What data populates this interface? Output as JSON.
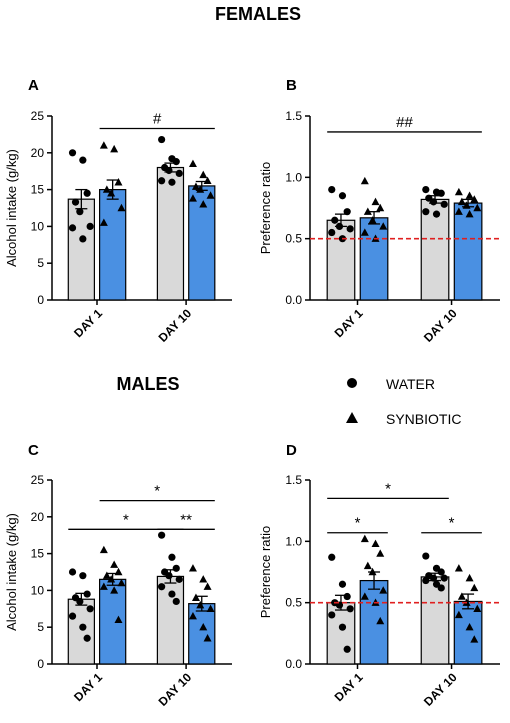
{
  "figure": {
    "section_females": "FEMALES",
    "section_males": "MALES",
    "legend": [
      {
        "label": "WATER",
        "marker": "circle",
        "color": "#d9d9d9"
      },
      {
        "label": "SYNBIOTIC",
        "marker": "triangle",
        "color": "#4a90e2"
      }
    ]
  },
  "chart_data": [
    {
      "panel": "A",
      "type": "bar",
      "ylabel": "Alcohol intake (g/kg)",
      "ylim": [
        0,
        25
      ],
      "yticks": [
        0,
        5,
        10,
        15,
        20,
        25
      ],
      "categories": [
        "DAY 1",
        "DAY 10"
      ],
      "series": [
        {
          "name": "WATER",
          "values": [
            13.7,
            18.0
          ],
          "sem": [
            1.3,
            0.6
          ],
          "points": [
            [
              20.0,
              19.0,
              14.5,
              13.3,
              12.0,
              10.0,
              9.8,
              8.3
            ],
            [
              21.8,
              19.2,
              18.8,
              18.0,
              17.6,
              17.2,
              16.2,
              16.0
            ]
          ]
        },
        {
          "name": "SYNBIOTIC",
          "values": [
            15.0,
            15.5
          ],
          "sem": [
            1.3,
            0.6
          ],
          "points": [
            [
              21.0,
              20.5,
              16.0,
              15.0,
              14.5,
              12.5,
              10.5
            ],
            [
              18.5,
              17.0,
              16.2,
              15.4,
              15.0,
              14.2,
              13.8,
              13.0
            ]
          ]
        }
      ],
      "annotations": [
        {
          "text": "#",
          "from": [
            0,
            1
          ],
          "to": [
            1,
            1
          ],
          "y": 23.3
        }
      ]
    },
    {
      "panel": "B",
      "type": "bar",
      "ylabel": "Preference ratio",
      "ylim": [
        0,
        1.5
      ],
      "yticks": [
        "0.0",
        "0.5",
        "1.0",
        "1.5"
      ],
      "reference_line": 0.5,
      "categories": [
        "DAY 1",
        "DAY 10"
      ],
      "series": [
        {
          "name": "WATER",
          "values": [
            0.65,
            0.82
          ],
          "sem": [
            0.05,
            0.03
          ],
          "points": [
            [
              0.9,
              0.85,
              0.72,
              0.65,
              0.6,
              0.58,
              0.55,
              0.5
            ],
            [
              0.9,
              0.88,
              0.87,
              0.83,
              0.8,
              0.78,
              0.72,
              0.7
            ]
          ]
        },
        {
          "name": "SYNBIOTIC",
          "values": [
            0.67,
            0.79
          ],
          "sem": [
            0.05,
            0.03
          ],
          "points": [
            [
              0.97,
              0.8,
              0.75,
              0.72,
              0.65,
              0.6,
              0.55,
              0.5
            ],
            [
              0.88,
              0.85,
              0.82,
              0.8,
              0.77,
              0.75,
              0.72,
              0.7
            ]
          ]
        }
      ],
      "annotations": [
        {
          "text": "##",
          "from": [
            0,
            0
          ],
          "to": [
            1,
            1
          ],
          "y": 1.37
        }
      ]
    },
    {
      "panel": "C",
      "type": "bar",
      "ylabel": "Alcohol intake (g/kg)",
      "ylim": [
        0,
        25
      ],
      "yticks": [
        0,
        5,
        10,
        15,
        20,
        25
      ],
      "categories": [
        "DAY 1",
        "DAY 10"
      ],
      "series": [
        {
          "name": "WATER",
          "values": [
            8.8,
            11.9
          ],
          "sem": [
            0.8,
            0.9
          ],
          "points": [
            [
              12.5,
              12.0,
              9.5,
              9.0,
              8.5,
              7.5,
              6.5,
              5.0,
              3.5
            ],
            [
              17.5,
              14.5,
              13.0,
              12.5,
              12.0,
              11.5,
              10.5,
              9.5,
              8.5
            ]
          ]
        },
        {
          "name": "SYNBIOTIC",
          "values": [
            11.5,
            8.2
          ],
          "sem": [
            0.8,
            1.0
          ],
          "points": [
            [
              15.5,
              13.5,
              12.5,
              12.0,
              11.5,
              11.0,
              10.5,
              10.0,
              6.0
            ],
            [
              13.0,
              11.5,
              10.5,
              9.0,
              8.0,
              7.5,
              6.5,
              5.0,
              3.5
            ]
          ]
        }
      ],
      "annotations": [
        {
          "text": "*",
          "from": [
            0,
            1
          ],
          "to": [
            1,
            1
          ],
          "y": 22.2
        },
        {
          "text": "*",
          "from": [
            0,
            0
          ],
          "to": [
            1,
            0
          ],
          "y": 18.3
        },
        {
          "text": "**",
          "from": [
            1,
            0
          ],
          "to": [
            1,
            1
          ],
          "y": 18.3
        }
      ]
    },
    {
      "panel": "D",
      "type": "bar",
      "ylabel": "Preference ratio",
      "ylim": [
        0,
        1.5
      ],
      "yticks": [
        "0.0",
        "0.5",
        "1.0",
        "1.5"
      ],
      "reference_line": 0.5,
      "categories": [
        "DAY 1",
        "DAY 10"
      ],
      "series": [
        {
          "name": "WATER",
          "values": [
            0.5,
            0.71
          ],
          "sem": [
            0.06,
            0.03
          ],
          "points": [
            [
              0.87,
              0.65,
              0.55,
              0.5,
              0.48,
              0.45,
              0.4,
              0.3,
              0.12
            ],
            [
              0.88,
              0.78,
              0.75,
              0.72,
              0.7,
              0.7,
              0.68,
              0.65,
              0.62
            ]
          ]
        },
        {
          "name": "SYNBIOTIC",
          "values": [
            0.68,
            0.51
          ],
          "sem": [
            0.07,
            0.06
          ],
          "points": [
            [
              1.02,
              0.98,
              0.9,
              0.8,
              0.75,
              0.6,
              0.55,
              0.5,
              0.35
            ],
            [
              0.78,
              0.7,
              0.62,
              0.55,
              0.5,
              0.45,
              0.4,
              0.3,
              0.2
            ]
          ]
        }
      ],
      "annotations": [
        {
          "text": "*",
          "from": [
            0,
            0
          ],
          "to": [
            1,
            0
          ],
          "y": 1.35
        },
        {
          "text": "*",
          "from": [
            0,
            0
          ],
          "to": [
            0,
            1
          ],
          "y": 1.07
        },
        {
          "text": "*",
          "from": [
            1,
            0
          ],
          "to": [
            1,
            1
          ],
          "y": 1.07
        }
      ]
    }
  ]
}
